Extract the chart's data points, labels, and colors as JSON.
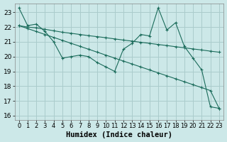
{
  "xlabel": "Humidex (Indice chaleur)",
  "bg_color": "#cce8e8",
  "grid_color": "#aacccc",
  "line_color": "#1a6b5a",
  "xlim": [
    -0.5,
    23.5
  ],
  "ylim": [
    15.7,
    23.6
  ],
  "xticks": [
    0,
    1,
    2,
    3,
    4,
    5,
    6,
    7,
    8,
    9,
    10,
    11,
    12,
    13,
    14,
    15,
    16,
    17,
    18,
    19,
    20,
    21,
    22,
    23
  ],
  "yticks": [
    16,
    17,
    18,
    19,
    20,
    21,
    22,
    23
  ],
  "line1_x": [
    0,
    1,
    2,
    3,
    4,
    5,
    6,
    7,
    8,
    9,
    10,
    11,
    12,
    13,
    14,
    15,
    16,
    17,
    18,
    19,
    20,
    21,
    22,
    23
  ],
  "line1_y": [
    23.3,
    22.1,
    22.2,
    21.7,
    21.0,
    19.9,
    20.0,
    20.1,
    20.0,
    19.6,
    19.3,
    19.0,
    20.5,
    20.9,
    21.5,
    21.4,
    23.3,
    21.8,
    22.3,
    20.7,
    19.9,
    19.1,
    16.6,
    16.5
  ],
  "line2_x": [
    0,
    1,
    2,
    3,
    4,
    5,
    6,
    7,
    8,
    9,
    10,
    11,
    12,
    13,
    14,
    15,
    16,
    17,
    18,
    19,
    20,
    21,
    22,
    23
  ],
  "line2_y": [
    22.1,
    22.0,
    21.95,
    21.85,
    21.75,
    21.65,
    21.58,
    21.5,
    21.42,
    21.35,
    21.28,
    21.2,
    21.12,
    21.05,
    20.97,
    20.9,
    20.82,
    20.75,
    20.67,
    20.6,
    20.52,
    20.45,
    20.37,
    20.3
  ],
  "line3_x": [
    0,
    1,
    2,
    3,
    4,
    5,
    6,
    7,
    8,
    9,
    10,
    11,
    12,
    13,
    14,
    15,
    16,
    17,
    18,
    19,
    20,
    21,
    22,
    23
  ],
  "line3_y": [
    22.1,
    21.9,
    21.7,
    21.5,
    21.3,
    21.1,
    20.9,
    20.7,
    20.5,
    20.3,
    20.1,
    19.9,
    19.7,
    19.5,
    19.3,
    19.1,
    18.9,
    18.7,
    18.5,
    18.3,
    18.1,
    17.9,
    17.7,
    16.5
  ],
  "tick_fontsize": 6.5,
  "xlabel_fontsize": 7.5
}
